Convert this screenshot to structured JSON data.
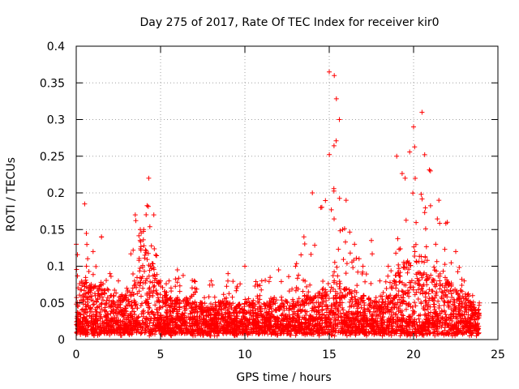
{
  "chart_data": {
    "type": "scatter",
    "title": "Day 275 of 2017, Rate Of TEC Index for receiver kir0",
    "xlabel": "GPS time / hours",
    "ylabel": "ROTI / TECUs",
    "xlim": [
      0,
      25
    ],
    "ylim": [
      0,
      0.4
    ],
    "xticks": [
      0,
      5,
      10,
      15,
      20,
      25
    ],
    "yticks": [
      0,
      0.05,
      0.1,
      0.15,
      0.2,
      0.25,
      0.3,
      0.35,
      0.4
    ],
    "xtick_labels": [
      "0",
      "5",
      "10",
      "15",
      "20",
      "25"
    ],
    "ytick_labels": [
      "0",
      "0.05",
      "0.1",
      "0.15",
      "0.2",
      "0.25",
      "0.3",
      "0.35",
      "0.4"
    ],
    "grid": true,
    "legend": "none",
    "marker": "plus",
    "color": "#ff0000",
    "x_range_of_data": [
      0,
      23.9
    ],
    "envelope": {
      "x": [
        0,
        0.5,
        1,
        1.5,
        2,
        2.5,
        3,
        3.5,
        3.8,
        4,
        4.3,
        4.6,
        5,
        5.5,
        6,
        7,
        8,
        9,
        10,
        11,
        12,
        13,
        13.5,
        14,
        14.5,
        15,
        15.3,
        15.6,
        16,
        16.5,
        17,
        17.5,
        18,
        18.5,
        19,
        19.5,
        20,
        20.5,
        21,
        21.5,
        22,
        22.5,
        23,
        23.5,
        23.9
      ],
      "dense_upper": [
        0.07,
        0.08,
        0.07,
        0.075,
        0.06,
        0.06,
        0.055,
        0.08,
        0.12,
        0.13,
        0.11,
        0.1,
        0.07,
        0.06,
        0.055,
        0.05,
        0.05,
        0.05,
        0.05,
        0.05,
        0.055,
        0.05,
        0.06,
        0.06,
        0.065,
        0.07,
        0.08,
        0.08,
        0.075,
        0.06,
        0.06,
        0.055,
        0.05,
        0.06,
        0.09,
        0.1,
        0.11,
        0.12,
        0.1,
        0.09,
        0.08,
        0.07,
        0.06,
        0.05,
        0.04
      ],
      "sparse_upper": [
        0.13,
        0.185,
        0.12,
        0.14,
        0.09,
        0.08,
        0.07,
        0.17,
        0.15,
        0.15,
        0.22,
        0.17,
        0.08,
        0.08,
        0.095,
        0.08,
        0.08,
        0.09,
        0.1,
        0.08,
        0.095,
        0.1,
        0.14,
        0.2,
        0.18,
        0.365,
        0.36,
        0.3,
        0.19,
        0.13,
        0.1,
        0.135,
        0.08,
        0.1,
        0.25,
        0.22,
        0.29,
        0.31,
        0.23,
        0.19,
        0.16,
        0.12,
        0.08,
        0.06,
        0.05
      ]
    }
  }
}
